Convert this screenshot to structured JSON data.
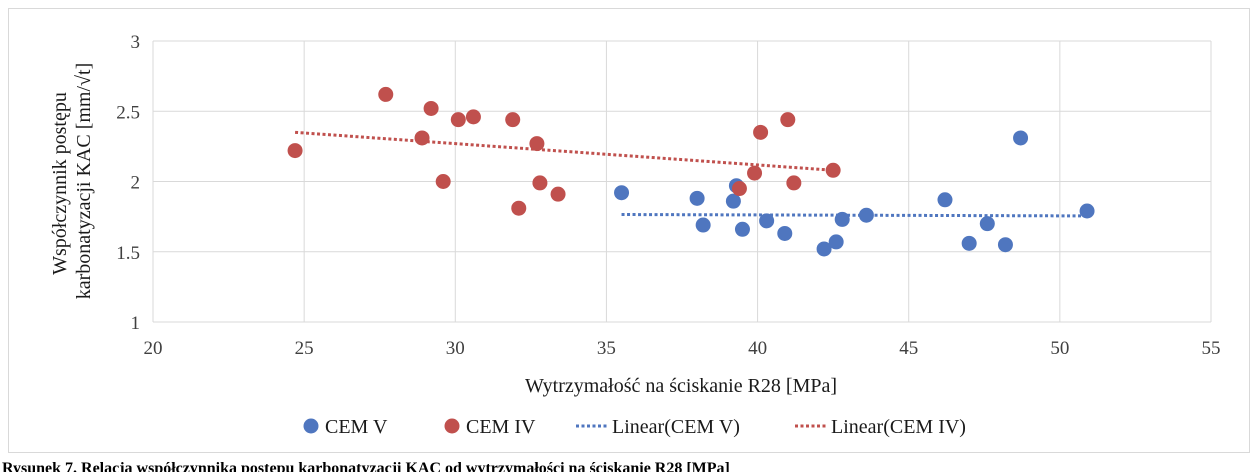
{
  "chart_data": {
    "type": "scatter",
    "xlabel": "Wytrzymałość na ściskanie R28 [MPa]",
    "ylabel_lines": [
      "Współczynnik postępu",
      "karbonatyzacji KAC [mm/√t]"
    ],
    "xlim": [
      20,
      55
    ],
    "ylim": [
      1,
      3
    ],
    "x_ticks": [
      20,
      25,
      30,
      35,
      40,
      45,
      50,
      55
    ],
    "y_ticks": [
      1,
      1.5,
      2,
      2.5,
      3
    ],
    "grid": "horizontal and vertical",
    "legend_position": "bottom",
    "series": [
      {
        "name": "CEM V",
        "color": "#4f76bf",
        "points": [
          [
            35.5,
            1.92
          ],
          [
            38.0,
            1.88
          ],
          [
            38.2,
            1.69
          ],
          [
            39.2,
            1.86
          ],
          [
            39.3,
            1.97
          ],
          [
            39.5,
            1.66
          ],
          [
            40.3,
            1.72
          ],
          [
            40.9,
            1.63
          ],
          [
            42.2,
            1.52
          ],
          [
            42.6,
            1.57
          ],
          [
            42.8,
            1.73
          ],
          [
            43.6,
            1.76
          ],
          [
            46.2,
            1.87
          ],
          [
            47.0,
            1.56
          ],
          [
            47.6,
            1.7
          ],
          [
            48.2,
            1.55
          ],
          [
            48.7,
            2.31
          ],
          [
            50.9,
            1.79
          ]
        ]
      },
      {
        "name": "CEM IV",
        "color": "#c0504d",
        "points": [
          [
            24.7,
            2.22
          ],
          [
            27.7,
            2.62
          ],
          [
            28.9,
            2.31
          ],
          [
            29.2,
            2.52
          ],
          [
            29.6,
            2.0
          ],
          [
            30.1,
            2.44
          ],
          [
            30.6,
            2.46
          ],
          [
            31.9,
            2.44
          ],
          [
            32.1,
            1.81
          ],
          [
            32.7,
            2.27
          ],
          [
            32.8,
            1.99
          ],
          [
            33.4,
            1.91
          ],
          [
            39.4,
            1.95
          ],
          [
            39.9,
            2.06
          ],
          [
            40.1,
            2.35
          ],
          [
            41.0,
            2.44
          ],
          [
            41.2,
            1.99
          ],
          [
            42.5,
            2.08
          ]
        ]
      }
    ],
    "trendlines": [
      {
        "name": "Linear(CEM V)",
        "color": "#4f76bf",
        "x": [
          35.5,
          50.9
        ],
        "y": [
          1.765,
          1.755
        ]
      },
      {
        "name": "Linear(CEM IV)",
        "color": "#c0504d",
        "x": [
          24.7,
          42.5
        ],
        "y": [
          2.35,
          2.08
        ]
      }
    ]
  },
  "caption": "Rysunek 7. Relacja współczynnika postępu karbonatyzacji KAC od wytrzymałości na ściskanie R28 [MPa]"
}
